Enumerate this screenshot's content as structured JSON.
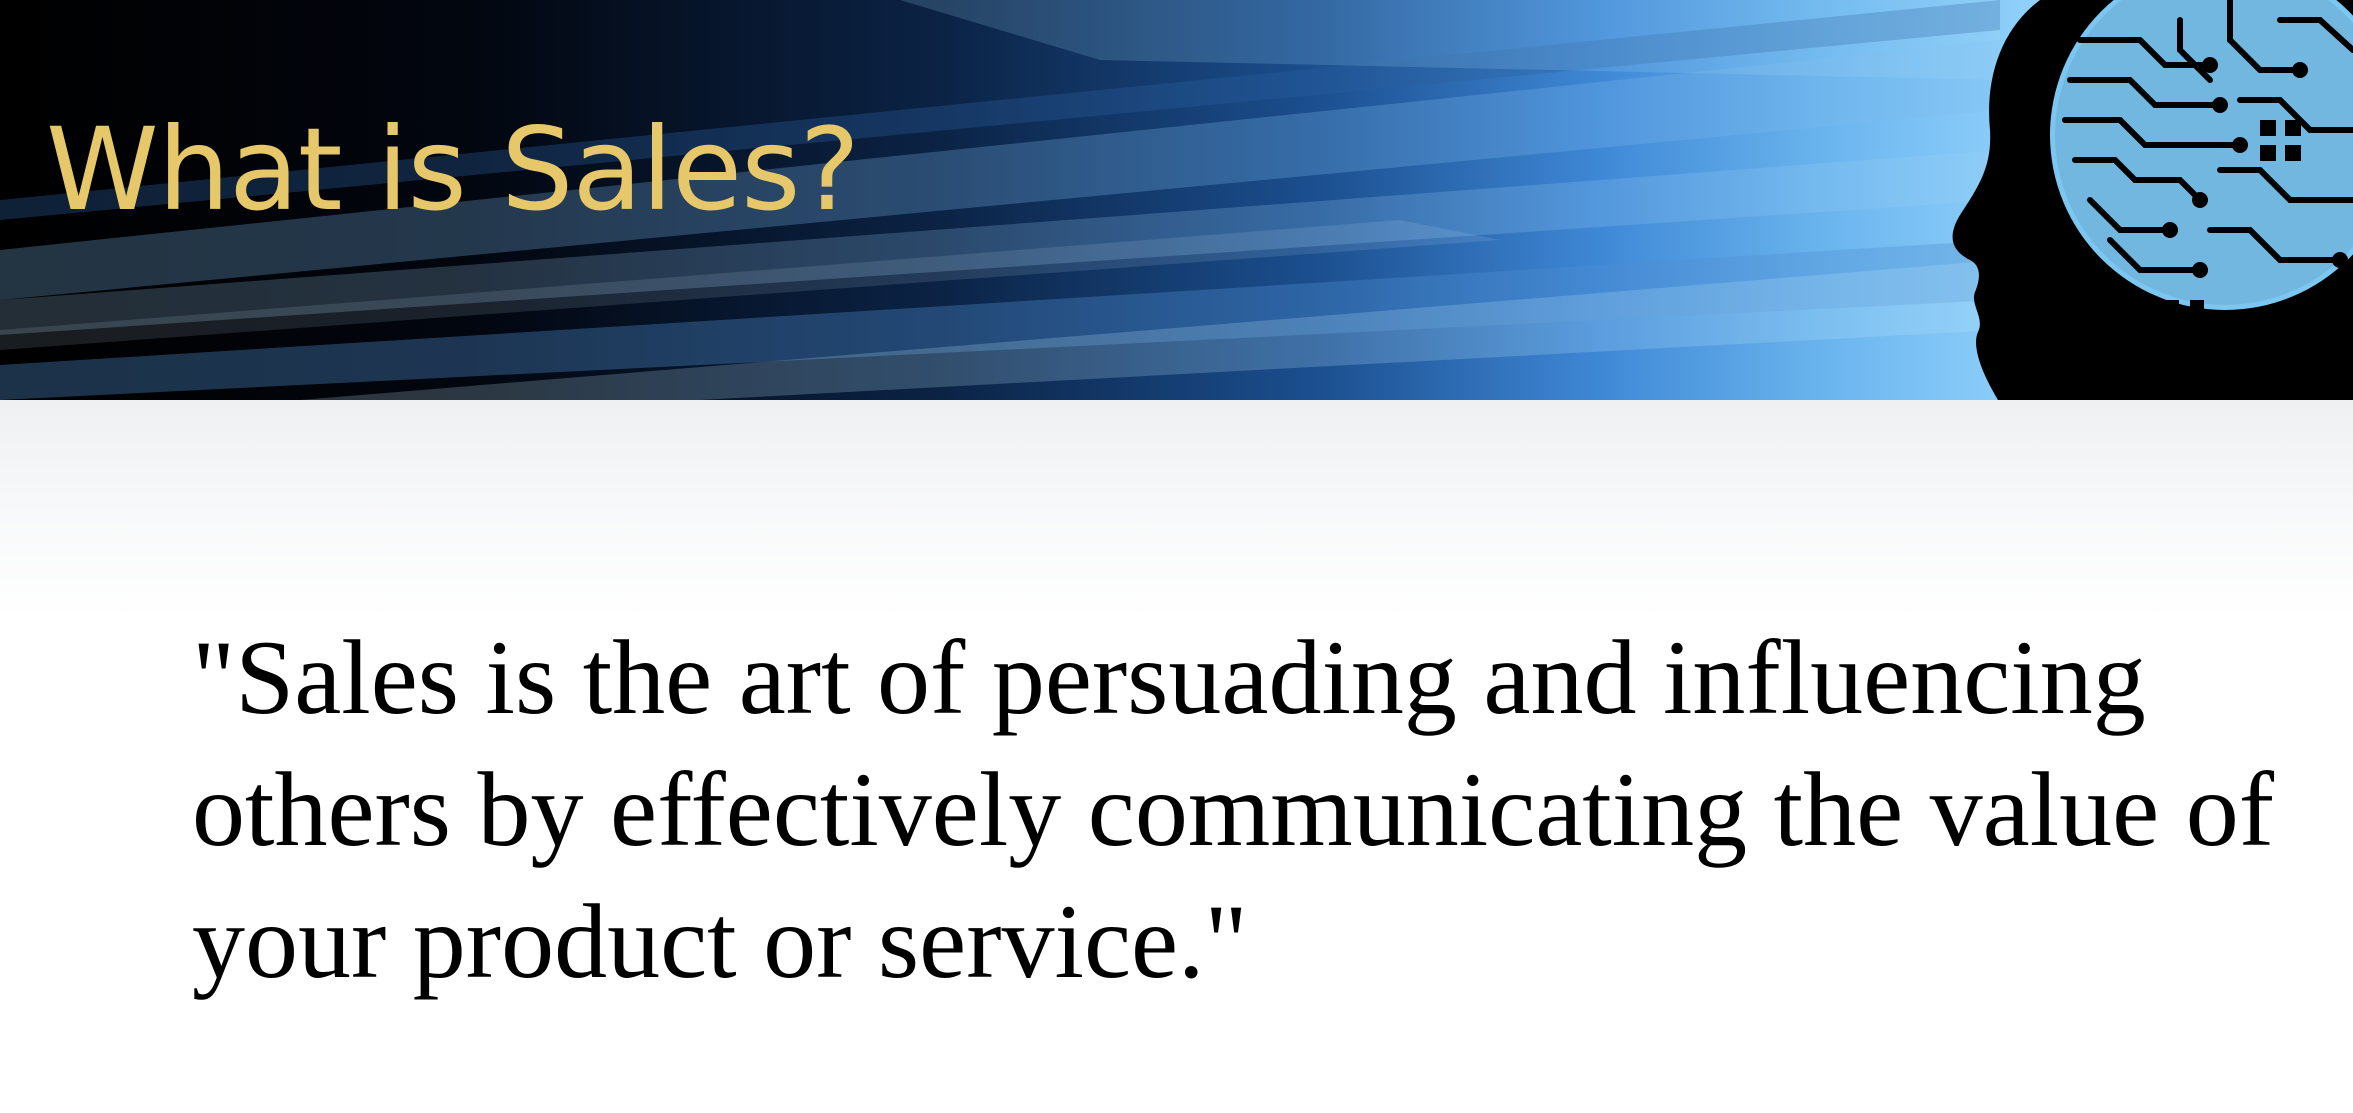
{
  "slide": {
    "title": "What is Sales?",
    "quote": "\"Sales is the art of persuading and influencing others by effectively communicating the value of your product or service.\""
  },
  "colors": {
    "title": "#e6c86a",
    "banner_dark": "#000000",
    "banner_light": "#8fd0fa",
    "body_text": "#000000"
  },
  "icons": {
    "header_graphic": "head-silhouette-circuit-icon"
  }
}
